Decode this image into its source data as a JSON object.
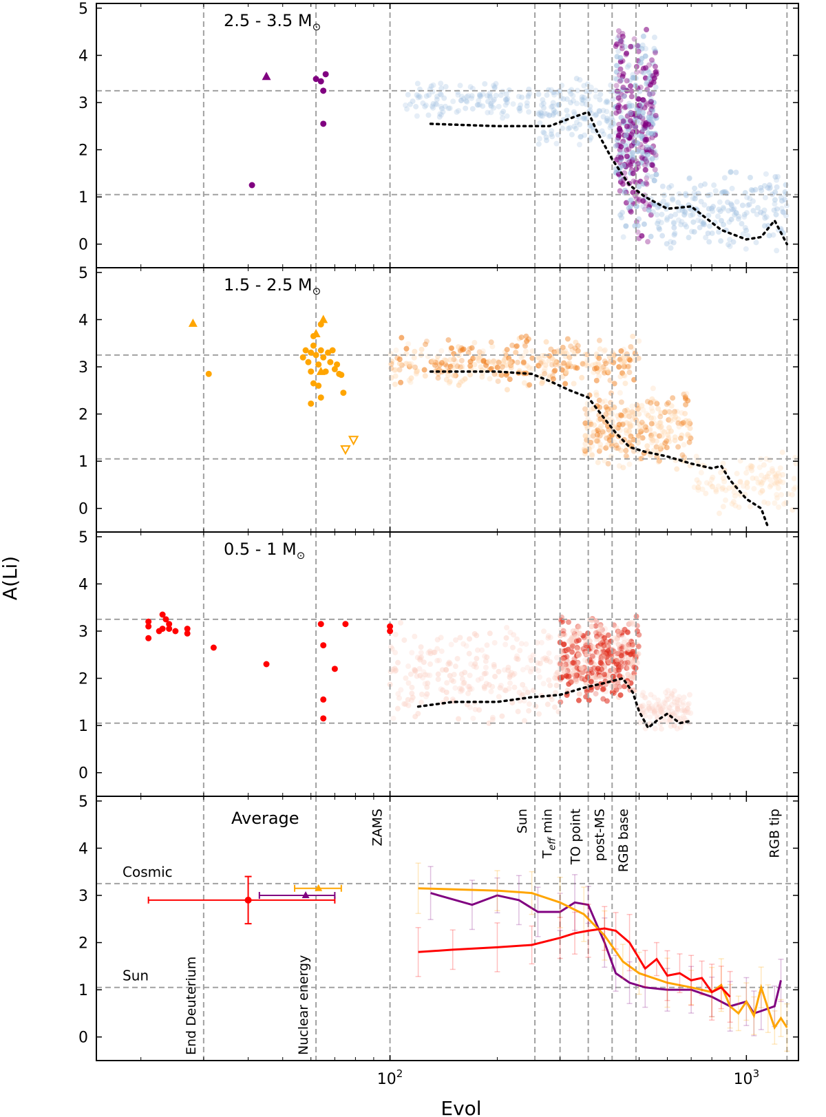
{
  "figure": {
    "ylabel": "A(Li)",
    "xlabel": "Evol",
    "xticks": [
      {
        "value": 100,
        "base": "10",
        "exp": "2"
      },
      {
        "value": 1000,
        "base": "10",
        "exp": "3"
      }
    ],
    "yticks": [
      "0",
      "1",
      "2",
      "3",
      "4",
      "5"
    ],
    "colors": {
      "high_mass": "#800080",
      "high_mass_cloud": "#9fbfe0",
      "mid_mass": "#ffa500",
      "mid_mass_cloud": "#f08020",
      "low_mass": "#ff0000",
      "low_mass_cloud": "#e03020",
      "reference_line": "#a0a0a0",
      "model_line": "#000000"
    }
  },
  "chart_data": [
    {
      "type": "scatter",
      "panel": "high",
      "title": "2.5 - 3.5 M",
      "title_symbol": "⊙",
      "xlim": [
        15,
        1400
      ],
      "xscale": "log",
      "ylim": [
        -0.5,
        5.1
      ],
      "hlines": [
        1.05,
        3.25
      ],
      "vlines": [
        30,
        62,
        100,
        255,
        300,
        360,
        420,
        490,
        1300
      ],
      "grid": "dashed reference lines",
      "points": [
        [
          41,
          1.25
        ],
        [
          62,
          3.5
        ],
        [
          64,
          3.45
        ],
        [
          66,
          3.6
        ],
        [
          65,
          3.25
        ],
        [
          65,
          2.55
        ]
      ],
      "upper_limit_triangles": [
        [
          45,
          3.55
        ]
      ],
      "lower_limit_triangles": [],
      "cloud": [
        {
          "x": [
            110,
            250
          ],
          "y": [
            2.6,
            3.5
          ],
          "density": 0.15
        },
        {
          "x": [
            260,
            430
          ],
          "y": [
            2.0,
            3.6
          ],
          "density": 0.2
        },
        {
          "x": [
            430,
            560
          ],
          "y": [
            -0.1,
            4.8
          ],
          "density": 0.9
        },
        {
          "x": [
            560,
            1300
          ],
          "y": [
            -0.2,
            1.6
          ],
          "density": 0.35
        }
      ],
      "model": {
        "x": [
          130,
          200,
          250,
          280,
          330,
          360,
          380,
          420,
          470,
          520,
          600,
          700,
          850,
          1000,
          1100,
          1200,
          1300
        ],
        "y": [
          2.55,
          2.5,
          2.5,
          2.5,
          2.7,
          2.8,
          2.4,
          1.8,
          1.25,
          1.0,
          0.75,
          0.8,
          0.3,
          0.1,
          0.15,
          0.5,
          0.0
        ]
      }
    },
    {
      "type": "scatter",
      "panel": "mid",
      "title": "1.5 - 2.5 M",
      "title_symbol": "⊙",
      "xlim": [
        15,
        1400
      ],
      "xscale": "log",
      "ylim": [
        -0.5,
        5.1
      ],
      "hlines": [
        1.05,
        3.25
      ],
      "vlines": [
        30,
        62,
        100,
        255,
        300,
        360,
        420,
        490,
        1300
      ],
      "grid": "dashed reference lines",
      "points": [
        [
          31,
          2.85
        ],
        [
          57,
          3.2
        ],
        [
          58,
          3.35
        ],
        [
          59,
          3.1
        ],
        [
          60,
          3.3
        ],
        [
          60,
          2.9
        ],
        [
          61,
          3.45
        ],
        [
          61,
          2.65
        ],
        [
          62,
          3.25
        ],
        [
          63,
          3.05
        ],
        [
          63,
          2.6
        ],
        [
          64,
          3.35
        ],
        [
          65,
          3.2
        ],
        [
          66,
          2.9
        ],
        [
          67,
          3.3
        ],
        [
          68,
          3.1
        ],
        [
          69,
          3.35
        ],
        [
          70,
          2.95
        ],
        [
          71,
          3.05
        ],
        [
          72,
          2.85
        ],
        [
          73,
          2.83
        ],
        [
          74,
          2.45
        ],
        [
          64,
          2.35
        ],
        [
          60,
          2.22
        ],
        [
          61,
          3.65
        ],
        [
          64,
          3.9
        ]
      ],
      "upper_limit_triangles": [
        [
          28,
          3.92
        ],
        [
          62,
          3.7
        ],
        [
          65,
          4.0
        ],
        [
          64,
          2.9
        ]
      ],
      "lower_limit_triangles": [
        [
          75,
          1.25
        ],
        [
          79,
          1.45
        ]
      ],
      "cloud": [
        {
          "x": [
            100,
            500
          ],
          "y": [
            2.5,
            3.7
          ],
          "density": 0.7
        },
        {
          "x": [
            350,
            700
          ],
          "y": [
            0.8,
            2.6
          ],
          "density": 0.55
        },
        {
          "x": [
            700,
            1400
          ],
          "y": [
            -0.2,
            1.2
          ],
          "density": 0.15
        }
      ],
      "model": {
        "x": [
          130,
          200,
          250,
          280,
          320,
          360,
          400,
          430,
          470,
          520,
          600,
          700,
          800,
          850,
          900,
          1000,
          1100,
          1150
        ],
        "y": [
          2.9,
          2.9,
          2.85,
          2.7,
          2.5,
          2.35,
          1.9,
          1.6,
          1.3,
          1.2,
          1.1,
          0.95,
          0.85,
          0.9,
          0.6,
          0.2,
          0.0,
          -0.4
        ]
      }
    },
    {
      "type": "scatter",
      "panel": "low",
      "title": "0.5 - 1 M",
      "title_symbol": "⊙",
      "xlim": [
        15,
        1400
      ],
      "xscale": "log",
      "ylim": [
        -0.5,
        5.1
      ],
      "hlines": [
        1.05,
        3.25
      ],
      "vlines": [
        30,
        62,
        100,
        255,
        300,
        360,
        420,
        490,
        1300
      ],
      "grid": "dashed reference lines",
      "points": [
        [
          21,
          3.2
        ],
        [
          21,
          3.1
        ],
        [
          21,
          2.85
        ],
        [
          22.5,
          3.0
        ],
        [
          23,
          3.05
        ],
        [
          23,
          3.35
        ],
        [
          23.5,
          3.25
        ],
        [
          24,
          3.05
        ],
        [
          24,
          3.15
        ],
        [
          25,
          3.0
        ],
        [
          27,
          2.95
        ],
        [
          27,
          3.05
        ],
        [
          32,
          2.65
        ],
        [
          45,
          2.3
        ],
        [
          64,
          3.15
        ],
        [
          65,
          2.7
        ],
        [
          65,
          1.55
        ],
        [
          65,
          1.15
        ],
        [
          70,
          2.2
        ],
        [
          75,
          3.15
        ],
        [
          100,
          3.1
        ],
        [
          100,
          3.0
        ]
      ],
      "upper_limit_triangles": [],
      "lower_limit_triangles": [],
      "cloud": [
        {
          "x": [
            100,
            300
          ],
          "y": [
            1.0,
            3.2
          ],
          "density": 0.45
        },
        {
          "x": [
            300,
            500
          ],
          "y": [
            1.4,
            3.4
          ],
          "density": 0.9
        },
        {
          "x": [
            500,
            700
          ],
          "y": [
            0.9,
            1.8
          ],
          "density": 0.15
        }
      ],
      "model": {
        "x": [
          120,
          150,
          200,
          250,
          300,
          350,
          400,
          450,
          480,
          500,
          530,
          560,
          600,
          650,
          700
        ],
        "y": [
          1.4,
          1.5,
          1.5,
          1.6,
          1.65,
          1.8,
          1.9,
          2.0,
          1.7,
          1.3,
          0.95,
          1.1,
          1.25,
          1.05,
          1.1
        ]
      }
    },
    {
      "type": "line",
      "panel": "average",
      "title": "Average",
      "xlim": [
        15,
        1400
      ],
      "xscale": "log",
      "ylim": [
        -0.5,
        5.1
      ],
      "hlines": [
        1.05,
        3.25
      ],
      "hline_labels": [
        "Sun",
        "Cosmic"
      ],
      "vlines": [
        30,
        62,
        100,
        255,
        300,
        360,
        420,
        490,
        1300
      ],
      "vline_labels": [
        "End Deuterium",
        "Nuclear energy",
        "ZAMS",
        "Sun",
        "Teff min",
        "TO point",
        "post-MS",
        "RGB base",
        "RGB tip"
      ],
      "teff_parts": {
        "main": "T",
        "sub": "eff",
        "rest": " min"
      },
      "errorbar_points": [
        {
          "series": "low",
          "x": 40,
          "y": 2.9,
          "xerr": [
            21,
            70
          ],
          "yerr": [
            2.4,
            3.4
          ]
        },
        {
          "series": "high",
          "x": 58,
          "y": 3.0,
          "xerr": [
            43,
            70
          ],
          "yerr": [
            3.0,
            3.0
          ]
        },
        {
          "series": "mid",
          "x": 63,
          "y": 3.15,
          "xerr": [
            54,
            73
          ],
          "yerr": [
            3.15,
            3.15
          ]
        }
      ],
      "series": [
        {
          "key": "high",
          "x": [
            130,
            170,
            200,
            230,
            260,
            300,
            330,
            360,
            400,
            430,
            470,
            520,
            600,
            700,
            800,
            900,
            1000,
            1050,
            1100,
            1200,
            1250
          ],
          "y": [
            3.05,
            2.8,
            3.0,
            2.9,
            2.65,
            2.65,
            2.85,
            2.8,
            2.0,
            1.35,
            1.15,
            1.05,
            1.0,
            1.0,
            0.85,
            0.65,
            0.75,
            0.5,
            0.55,
            0.65,
            1.2
          ]
        },
        {
          "key": "mid",
          "x": [
            120,
            200,
            250,
            300,
            350,
            400,
            450,
            500,
            600,
            700,
            800,
            850,
            900,
            950,
            1000,
            1050,
            1100,
            1150,
            1200,
            1250,
            1300
          ],
          "y": [
            3.15,
            3.1,
            3.05,
            2.85,
            2.6,
            2.15,
            1.6,
            1.35,
            1.15,
            1.05,
            0.95,
            1.1,
            0.65,
            0.5,
            0.75,
            0.45,
            1.05,
            0.6,
            0.2,
            0.4,
            0.2
          ]
        },
        {
          "key": "low",
          "x": [
            120,
            150,
            200,
            250,
            300,
            330,
            360,
            400,
            430,
            470,
            520,
            560,
            600,
            650,
            700,
            750,
            800,
            850,
            900
          ],
          "y": [
            1.8,
            1.85,
            1.9,
            1.95,
            2.1,
            2.2,
            2.25,
            2.3,
            2.25,
            2.0,
            1.45,
            1.65,
            1.3,
            1.35,
            1.2,
            1.25,
            0.95,
            1.05,
            0.85
          ]
        }
      ]
    }
  ]
}
